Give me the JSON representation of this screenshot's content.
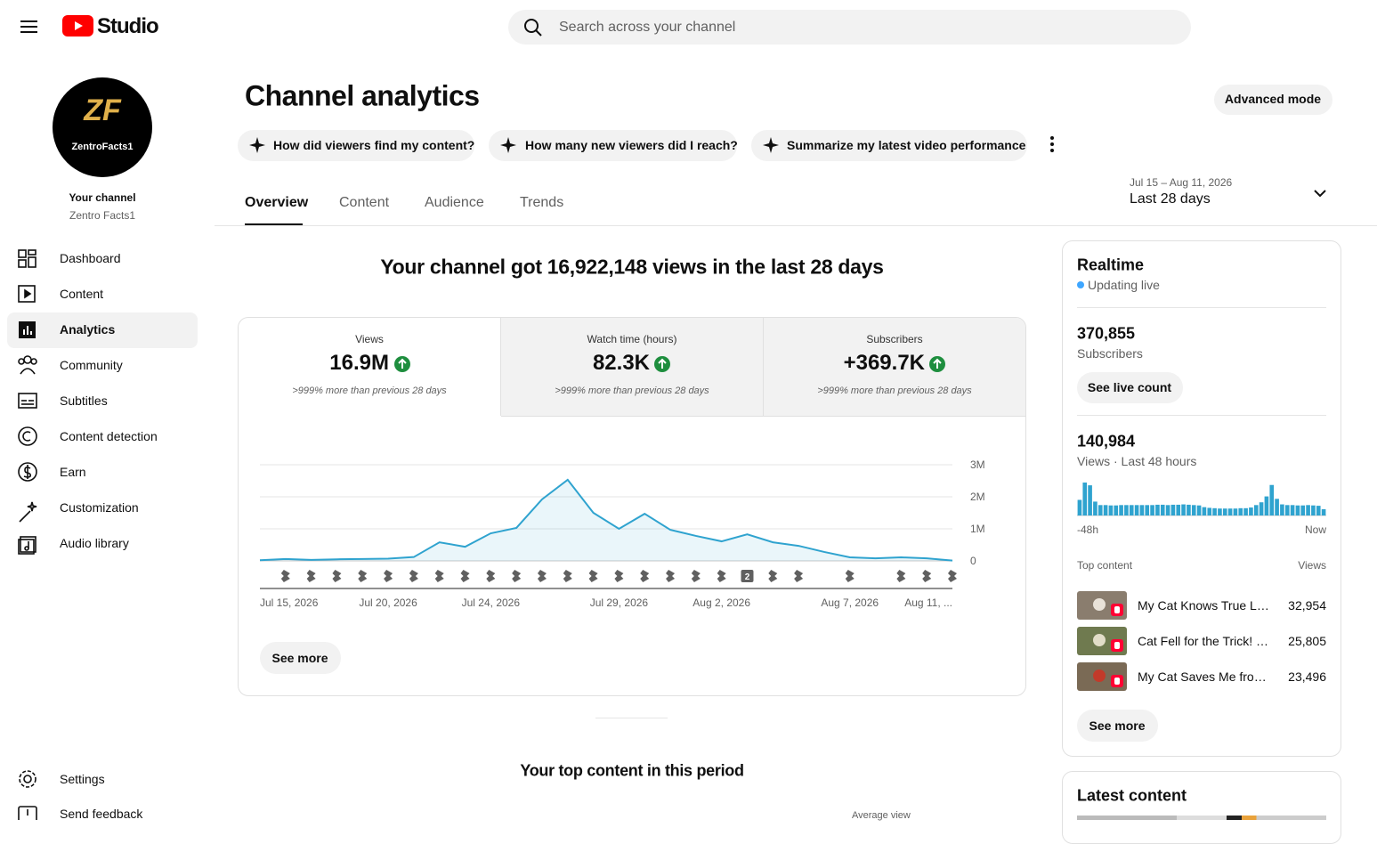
{
  "header": {
    "brand": "Studio",
    "search_placeholder": "Search across your channel"
  },
  "sidebar": {
    "avatar": {
      "monogram": "ZF",
      "name": "ZentroFacts1"
    },
    "channel_label": "Your channel",
    "channel_name": "Zentro Facts1",
    "nav": [
      "Dashboard",
      "Content",
      "Analytics",
      "Community",
      "Subtitles",
      "Content detection",
      "Earn",
      "Customization",
      "Audio library"
    ],
    "bottom_nav": [
      "Settings",
      "Send feedback"
    ]
  },
  "main": {
    "title": "Channel analytics",
    "advanced_button": "Advanced mode",
    "prompts": [
      "How did viewers find my content?",
      "How many new viewers did I reach?",
      "Summarize my latest video performance"
    ],
    "tabs": [
      "Overview",
      "Content",
      "Audience",
      "Trends"
    ],
    "date_range": {
      "dates": "Jul 15 – Aug 11, 2026",
      "label": "Last 28 days"
    },
    "headline": "Your channel got 16,922,148 views in the last 28 days",
    "metrics": [
      {
        "label": "Views",
        "value": "16.9M",
        "change": ">999% more than previous 28 days"
      },
      {
        "label": "Watch time (hours)",
        "value": "82.3K",
        "change": ">999% more than previous 28 days"
      },
      {
        "label": "Subscribers",
        "value": "+369.7K",
        "change": ">999% more than previous 28 days"
      }
    ],
    "see_more": "See more",
    "top_content_title": "Your top content in this period",
    "top_content_column": "Average view"
  },
  "realtime": {
    "title": "Realtime",
    "status": "Updating live",
    "subscribers": "370,855",
    "subscribers_label": "Subscribers",
    "live_button": "See live count",
    "views": "140,984",
    "views_label": "Views · Last 48 hours",
    "top_content_label": "Top content",
    "views_column": "Views",
    "top_content": [
      {
        "title": "My Cat Knows True L…",
        "views": "32,954"
      },
      {
        "title": "Cat Fell for the Trick! …",
        "views": "25,805"
      },
      {
        "title": "My Cat Saves Me fro…",
        "views": "23,496"
      }
    ],
    "see_more": "See more"
  },
  "latest_content": {
    "title": "Latest content"
  },
  "chart_data": [
    {
      "type": "line",
      "categories": [
        "Jul 15, 2026",
        null,
        null,
        null,
        null,
        "Jul 20, 2026",
        null,
        null,
        null,
        "Jul 24, 2026",
        null,
        null,
        null,
        null,
        "Jul 29, 2026",
        null,
        null,
        null,
        "Aug 2, 2026",
        null,
        null,
        null,
        null,
        "Aug 7, 2026",
        null,
        null,
        null,
        "Aug 11, ..."
      ],
      "series": [
        {
          "name": "Views",
          "color": "#2fa3cf",
          "values": [
            20000,
            60000,
            30000,
            50000,
            60000,
            70000,
            120000,
            580000,
            440000,
            860000,
            1030000,
            1920000,
            2530000,
            1500000,
            1000000,
            1470000,
            970000,
            780000,
            610000,
            830000,
            580000,
            470000,
            280000,
            110000,
            80000,
            110000,
            80000,
            10000
          ]
        }
      ],
      "uploads": [
        null,
        1,
        1,
        1,
        1,
        1,
        1,
        1,
        1,
        1,
        1,
        1,
        1,
        1,
        1,
        1,
        1,
        1,
        1,
        2,
        1,
        1,
        null,
        1,
        null,
        1,
        1,
        1
      ],
      "ylim": [
        0,
        3000000
      ],
      "yticks": [
        0,
        {
          "value": 1000000,
          "label": "1M"
        },
        {
          "value": 2000000,
          "label": "2M"
        },
        {
          "value": 3000000,
          "label": "3M"
        }
      ],
      "grid": true
    },
    {
      "type": "bar",
      "categories": [
        "-48h",
        null,
        null,
        null,
        null,
        null,
        null,
        null,
        null,
        null,
        null,
        null,
        null,
        null,
        null,
        null,
        null,
        null,
        null,
        null,
        null,
        null,
        null,
        null,
        null,
        null,
        null,
        null,
        null,
        null,
        null,
        null,
        null,
        null,
        null,
        null,
        null,
        null,
        null,
        null,
        null,
        null,
        null,
        null,
        null,
        null,
        null,
        "Now"
      ],
      "color": "#2fa3cf",
      "values": [
        4500,
        9500,
        8700,
        4000,
        3000,
        3000,
        2900,
        2900,
        3000,
        3000,
        3000,
        3000,
        3000,
        3000,
        3000,
        3100,
        3100,
        3000,
        3100,
        3100,
        3200,
        3100,
        3000,
        2900,
        2400,
        2200,
        2100,
        2000,
        2000,
        2000,
        2000,
        2100,
        2100,
        2300,
        3000,
        3800,
        5500,
        8800,
        4800,
        3200,
        3000,
        3000,
        2900,
        2900,
        3000,
        2900,
        2800,
        1800
      ]
    }
  ]
}
